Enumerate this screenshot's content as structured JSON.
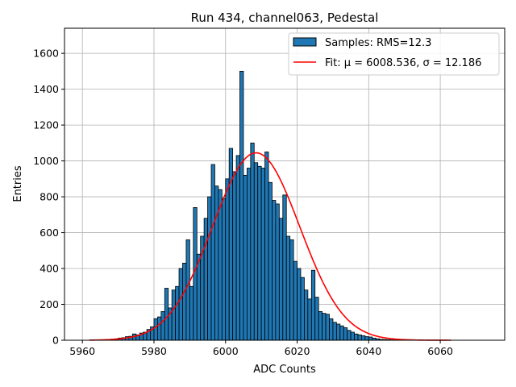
{
  "chart_data": {
    "type": "bar",
    "title": "Run 434, channel063, Pedestal",
    "xlabel": "ADC Counts",
    "ylabel": "Entries",
    "xlim": [
      5955,
      6078
    ],
    "ylim": [
      0,
      1740
    ],
    "xticks": [
      5960,
      5980,
      6000,
      6020,
      6040,
      6060
    ],
    "yticks": [
      0,
      200,
      400,
      600,
      800,
      1000,
      1200,
      1400,
      1600
    ],
    "grid": true,
    "legend_position": "top-right",
    "series": [
      {
        "name": "Samples: RMS=12.3",
        "kind": "histogram",
        "color": "#1f77b4",
        "edge_color": "#000000",
        "bins": [
          5962,
          5963,
          5964,
          5965,
          5966,
          5967,
          5968,
          5969,
          5970,
          5971,
          5972,
          5973,
          5974,
          5975,
          5976,
          5977,
          5978,
          5979,
          5980,
          5981,
          5982,
          5983,
          5984,
          5985,
          5986,
          5987,
          5988,
          5989,
          5990,
          5991,
          5992,
          5993,
          5994,
          5995,
          5996,
          5997,
          5998,
          5999,
          6000,
          6001,
          6002,
          6003,
          6004,
          6005,
          6006,
          6007,
          6008,
          6009,
          6010,
          6011,
          6012,
          6013,
          6014,
          6015,
          6016,
          6017,
          6018,
          6019,
          6020,
          6021,
          6022,
          6023,
          6024,
          6025,
          6026,
          6027,
          6028,
          6029,
          6030,
          6031,
          6032,
          6033,
          6034,
          6035,
          6036,
          6037,
          6038,
          6039,
          6040,
          6041,
          6042,
          6043,
          6044,
          6045,
          6046,
          6047,
          6048,
          6049,
          6050,
          6051,
          6052
        ],
        "values": [
          1,
          1,
          2,
          2,
          3,
          4,
          6,
          8,
          12,
          14,
          20,
          22,
          35,
          30,
          40,
          45,
          60,
          75,
          120,
          130,
          160,
          290,
          180,
          280,
          300,
          400,
          430,
          560,
          300,
          740,
          480,
          580,
          680,
          800,
          980,
          860,
          840,
          790,
          900,
          1070,
          940,
          1030,
          1500,
          920,
          960,
          1100,
          990,
          970,
          960,
          1050,
          880,
          780,
          760,
          680,
          810,
          580,
          560,
          440,
          400,
          350,
          280,
          230,
          390,
          240,
          160,
          150,
          145,
          120,
          100,
          90,
          80,
          70,
          55,
          45,
          35,
          30,
          25,
          20,
          18,
          12,
          8,
          5,
          4,
          3,
          2,
          2,
          1,
          1,
          1,
          1,
          1
        ]
      },
      {
        "name": "Fit: μ = 6008.536, σ = 12.186",
        "kind": "gaussian-fit",
        "color": "#ff0000",
        "mu": 6008.536,
        "sigma": 12.186,
        "amplitude": 1045,
        "x_range": [
          5962,
          6063
        ]
      }
    ]
  }
}
